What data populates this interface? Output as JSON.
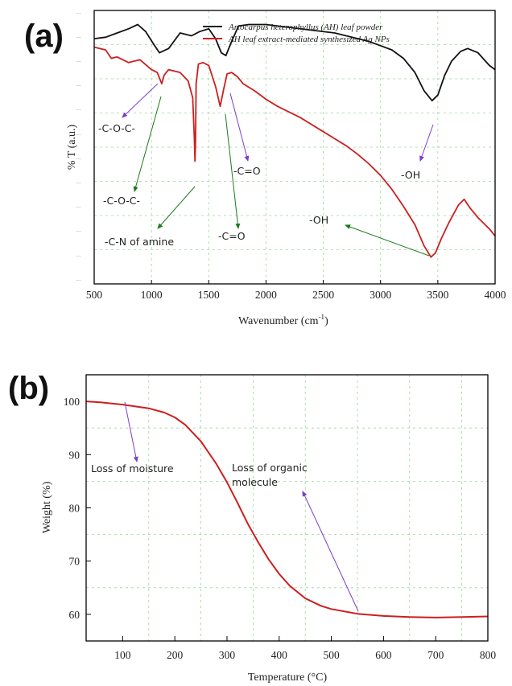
{
  "colors": {
    "black": "#111111",
    "red": "#cc1f1f",
    "green": "#1b7a1b",
    "purple": "#7a3fc8",
    "grid": "#9ed49e"
  },
  "chart_data": [
    {
      "panel": "(a)",
      "type": "line",
      "xlabel": "Wavenumber (cm⁻¹)",
      "ylabel": "% T (a.u.)",
      "xlim": [
        500,
        4000
      ],
      "xticks": [
        500,
        1000,
        1500,
        2000,
        2500,
        3000,
        3500,
        4000
      ],
      "y_tick_labels_visible": false,
      "grid": true,
      "legend_placement": "top-right",
      "series": [
        {
          "name": "Artocarpus heterophyllus (AH) leaf powder",
          "color": "#111111",
          "x": [
            500,
            600,
            700,
            800,
            880,
            950,
            1020,
            1070,
            1150,
            1250,
            1350,
            1420,
            1500,
            1560,
            1610,
            1650,
            1700,
            1760,
            1850,
            2000,
            2200,
            2400,
            2600,
            2750,
            2900,
            3000,
            3100,
            3200,
            3300,
            3380,
            3450,
            3500,
            3560,
            3620,
            3700,
            3760,
            3850,
            3950,
            4000
          ],
          "y": [
            0.92,
            0.93,
            0.96,
            0.99,
            1.02,
            0.97,
            0.88,
            0.82,
            0.85,
            0.96,
            0.94,
            0.97,
            0.99,
            0.92,
            0.82,
            0.8,
            0.9,
            1.01,
            1.02,
            1.02,
            1.0,
            0.98,
            0.96,
            0.93,
            0.9,
            0.87,
            0.84,
            0.78,
            0.68,
            0.55,
            0.48,
            0.52,
            0.66,
            0.76,
            0.83,
            0.85,
            0.82,
            0.73,
            0.7
          ]
        },
        {
          "name": "AH leaf extract-mediated synthesized Ag NPs",
          "color": "#cc1f1f",
          "x": [
            500,
            600,
            650,
            700,
            800,
            900,
            1000,
            1050,
            1090,
            1110,
            1150,
            1250,
            1320,
            1360,
            1375,
            1380,
            1385,
            1390,
            1410,
            1450,
            1500,
            1560,
            1600,
            1630,
            1660,
            1700,
            1750,
            1800,
            1900,
            2000,
            2100,
            2200,
            2300,
            2400,
            2500,
            2600,
            2700,
            2800,
            2900,
            3000,
            3100,
            3200,
            3300,
            3380,
            3440,
            3480,
            3530,
            3600,
            3680,
            3730,
            3780,
            3850,
            3950,
            4000
          ],
          "y": [
            0.86,
            0.84,
            0.78,
            0.79,
            0.75,
            0.77,
            0.7,
            0.68,
            0.6,
            0.66,
            0.7,
            0.68,
            0.62,
            0.5,
            0.2,
            0.05,
            0.2,
            0.6,
            0.74,
            0.75,
            0.73,
            0.58,
            0.44,
            0.56,
            0.67,
            0.68,
            0.65,
            0.6,
            0.55,
            0.49,
            0.44,
            0.4,
            0.36,
            0.31,
            0.26,
            0.21,
            0.16,
            0.1,
            0.03,
            -0.05,
            -0.15,
            -0.27,
            -0.4,
            -0.55,
            -0.63,
            -0.6,
            -0.5,
            -0.38,
            -0.26,
            -0.22,
            -0.28,
            -0.35,
            -0.43,
            -0.48
          ]
        }
      ],
      "annotations": [
        {
          "text": "-C-O-C-",
          "color": "#7a3fc8"
        },
        {
          "text": "-C-O-C-",
          "color": "#1b7a1b"
        },
        {
          "text": "-C-N of amine",
          "color": "#1b7a1b"
        },
        {
          "text": "-C=O",
          "color": "#1b7a1b"
        },
        {
          "text": "-C=O",
          "color": "#7a3fc8"
        },
        {
          "text": "-OH",
          "color": "#7a3fc8"
        },
        {
          "text": "-OH",
          "color": "#1b7a1b"
        }
      ]
    },
    {
      "panel": "(b)",
      "type": "line",
      "xlabel": "Temperature (°C)",
      "ylabel": "Weight (%)",
      "xlim": [
        30,
        800
      ],
      "ylim": [
        55,
        105
      ],
      "xticks": [
        100,
        200,
        300,
        400,
        500,
        600,
        700,
        800
      ],
      "yticks": [
        60,
        70,
        80,
        90,
        100
      ],
      "grid": true,
      "series": [
        {
          "color": "#cc1f1f",
          "x": [
            30,
            60,
            100,
            150,
            180,
            200,
            220,
            250,
            280,
            300,
            320,
            340,
            360,
            380,
            400,
            420,
            450,
            480,
            500,
            550,
            600,
            650,
            700,
            750,
            800
          ],
          "y": [
            100,
            99.8,
            99.4,
            98.7,
            97.9,
            97.0,
            95.6,
            92.5,
            88.2,
            84.8,
            81.0,
            77.0,
            73.5,
            70.3,
            67.6,
            65.4,
            63.0,
            61.6,
            61.0,
            60.1,
            59.7,
            59.5,
            59.4,
            59.5,
            59.6
          ]
        }
      ],
      "annotations": [
        {
          "text": "Loss of moisture",
          "color": "#7a3fc8"
        },
        {
          "text": "Loss of organic",
          "color": "#7a3fc8"
        },
        {
          "text": "molecule",
          "color": "#7a3fc8"
        }
      ]
    }
  ],
  "labels": {
    "panel_a": "(a)",
    "panel_b": "(b)",
    "a_xlabel": "Wavenumber (cm",
    "a_xlabel_sup": "-1",
    "a_xlabel_end": ")",
    "a_ylabel": "% T (a.u.)",
    "b_xlabel": "Temperature (°C)",
    "b_ylabel": "Weight (%)",
    "legend_1": "Artocarpus heterophyllus (AH) leaf powder",
    "legend_2": "AH leaf extract-mediated synthesized Ag NPs",
    "a_cocl_1": "-C-O-C-",
    "a_cocl_2": "-C-O-C-",
    "a_cn": "-C-N of amine",
    "a_co_1": "-C=O",
    "a_co_2": "-C=O",
    "a_oh_1": "-OH",
    "a_oh_2": "-OH",
    "b_moisture": "Loss of moisture",
    "b_organic_1": "Loss of organic",
    "b_organic_2": "molecule"
  }
}
